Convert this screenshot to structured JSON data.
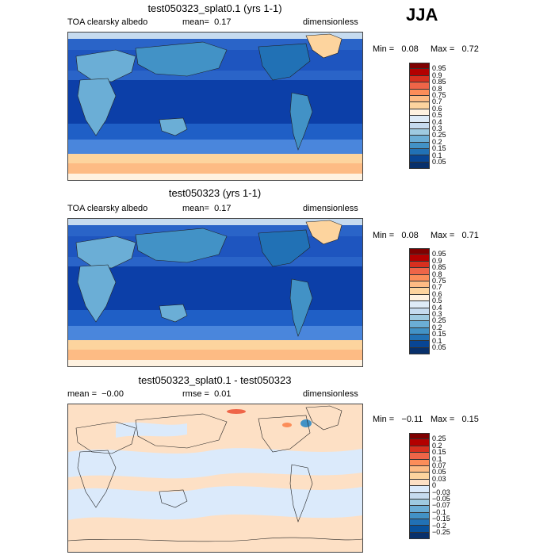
{
  "season_label": "JJA",
  "panels": [
    {
      "title": "test050323_splat0.1 (yrs 1-1)",
      "field": "TOA clearsky albedo",
      "mean_text": "mean=",
      "mean_value": "0.17",
      "units": "dimensionless",
      "min_label": "Min =",
      "min_value": "0.08",
      "max_label": "Max =",
      "max_value": "0.72"
    },
    {
      "title": "test050323 (yrs 1-1)",
      "field": "TOA clearsky albedo",
      "mean_text": "mean=",
      "mean_value": "0.17",
      "units": "dimensionless",
      "min_label": "Min =",
      "min_value": "0.08",
      "max_label": "Max =",
      "max_value": "0.71"
    },
    {
      "title": "test050323_splat0.1 - test050323",
      "mean_text": "mean =",
      "mean_value": "−0.00",
      "rmse_text": "rmse =",
      "rmse_value": "0.01",
      "units": "dimensionless",
      "min_label": "Min =",
      "min_value": "−0.11",
      "max_label": "Max =",
      "max_value": "0.15"
    }
  ],
  "colorbars": {
    "albedo": {
      "levels": [
        "0.95",
        "0.9",
        "0.85",
        "0.8",
        "0.75",
        "0.7",
        "0.6",
        "0.5",
        "0.4",
        "0.3",
        "0.25",
        "0.2",
        "0.15",
        "0.1",
        "0.05"
      ],
      "colors": [
        "#7f0000",
        "#b30000",
        "#d7301f",
        "#ef6548",
        "#fc8d59",
        "#fdbb84",
        "#fdd49e",
        "#fff2e0",
        "#deebf7",
        "#c6dbef",
        "#9ecae1",
        "#6baed6",
        "#4292c6",
        "#2171b5",
        "#084594",
        "#08306b"
      ]
    },
    "diff": {
      "levels": [
        "0.25",
        "0.2",
        "0.15",
        "0.1",
        "0.07",
        "0.05",
        "0.03",
        "0",
        "−0.03",
        "−0.05",
        "−0.07",
        "−0.1",
        "−0.15",
        "−0.2",
        "−0.25"
      ],
      "colors": [
        "#7f0000",
        "#b30000",
        "#d7301f",
        "#ef6548",
        "#fc8d59",
        "#fdbb84",
        "#fdd49e",
        "#fde0c5",
        "#dbeafb",
        "#c6dbef",
        "#9ecae1",
        "#6baed6",
        "#4292c6",
        "#2171b5",
        "#08519c",
        "#08306b"
      ]
    }
  },
  "chart_data": [
    {
      "type": "heatmap",
      "title": "test050323_splat0.1 (yrs 1-1)",
      "variable": "TOA clearsky albedo",
      "units": "dimensionless",
      "mean": 0.17,
      "min": 0.08,
      "max": 0.72,
      "contour_levels": [
        0.05,
        0.1,
        0.15,
        0.2,
        0.25,
        0.3,
        0.4,
        0.5,
        0.6,
        0.7,
        0.75,
        0.8,
        0.85,
        0.9,
        0.95
      ]
    },
    {
      "type": "heatmap",
      "title": "test050323 (yrs 1-1)",
      "variable": "TOA clearsky albedo",
      "units": "dimensionless",
      "mean": 0.17,
      "min": 0.08,
      "max": 0.71,
      "contour_levels": [
        0.05,
        0.1,
        0.15,
        0.2,
        0.25,
        0.3,
        0.4,
        0.5,
        0.6,
        0.7,
        0.75,
        0.8,
        0.85,
        0.9,
        0.95
      ]
    },
    {
      "type": "heatmap",
      "title": "test050323_splat0.1 - test050323",
      "units": "dimensionless",
      "mean": -0.0,
      "rmse": 0.01,
      "min": -0.11,
      "max": 0.15,
      "contour_levels": [
        -0.25,
        -0.2,
        -0.15,
        -0.1,
        -0.07,
        -0.05,
        -0.03,
        0,
        0.03,
        0.05,
        0.07,
        0.1,
        0.15,
        0.2,
        0.25
      ]
    }
  ]
}
